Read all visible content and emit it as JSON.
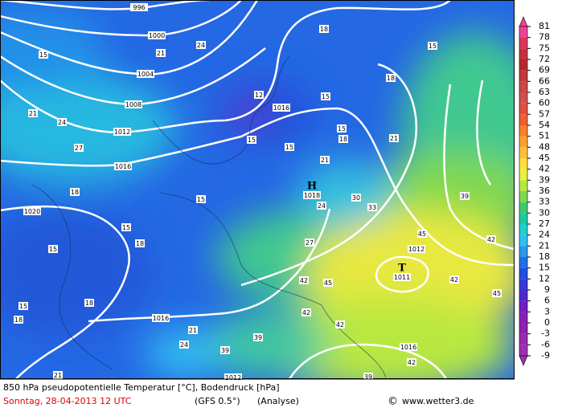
{
  "map": {
    "isobar_labels": [
      996,
      1000,
      1004,
      1008,
      1012,
      1016,
      1016,
      1020,
      1016,
      1012,
      1016,
      1012
    ],
    "centers": [
      {
        "symbol": "H",
        "value": 1018
      },
      {
        "symbol": "T",
        "value": 1011
      }
    ],
    "temperature_labels": [
      18,
      15,
      24,
      21,
      15,
      18,
      12,
      15,
      21,
      24,
      15,
      18,
      21,
      15,
      15,
      27,
      21,
      18,
      15,
      30,
      24,
      33,
      39,
      15,
      18,
      27,
      45,
      42,
      15,
      42,
      45,
      42,
      15,
      18,
      45,
      42,
      42,
      21,
      24,
      39,
      39,
      42,
      39,
      18,
      21
    ]
  },
  "legend": {
    "ticks": [
      81,
      78,
      75,
      72,
      69,
      66,
      63,
      60,
      57,
      54,
      51,
      48,
      45,
      42,
      39,
      36,
      33,
      30,
      27,
      24,
      21,
      18,
      15,
      12,
      9,
      6,
      3,
      0,
      -3,
      -6,
      -9
    ],
    "colors": [
      "#f0409c",
      "#d8385c",
      "#c83040",
      "#b82828",
      "#c03838",
      "#c84848",
      "#d05050",
      "#e05040",
      "#f06030",
      "#f88028",
      "#fca030",
      "#ffc040",
      "#ffe040",
      "#e8f040",
      "#b8e840",
      "#80d850",
      "#40c870",
      "#20c8a0",
      "#20d0d0",
      "#30c0f0",
      "#2898f0",
      "#2070e8",
      "#2050e0",
      "#3838d8",
      "#5028c8",
      "#7020c0",
      "#8820b8",
      "#9020b0",
      "#9828b0",
      "#a030b0"
    ]
  },
  "caption": {
    "line1": "850 hPa pseudopotentielle Temperatur [°C], Bodendruck [hPa]",
    "date": "Sonntag, 28-04-2013  12 UTC",
    "model": "(GFS 0.5°)",
    "analysis": "(Analyse)",
    "copyright": "©",
    "site": "www.wetter3.de"
  }
}
